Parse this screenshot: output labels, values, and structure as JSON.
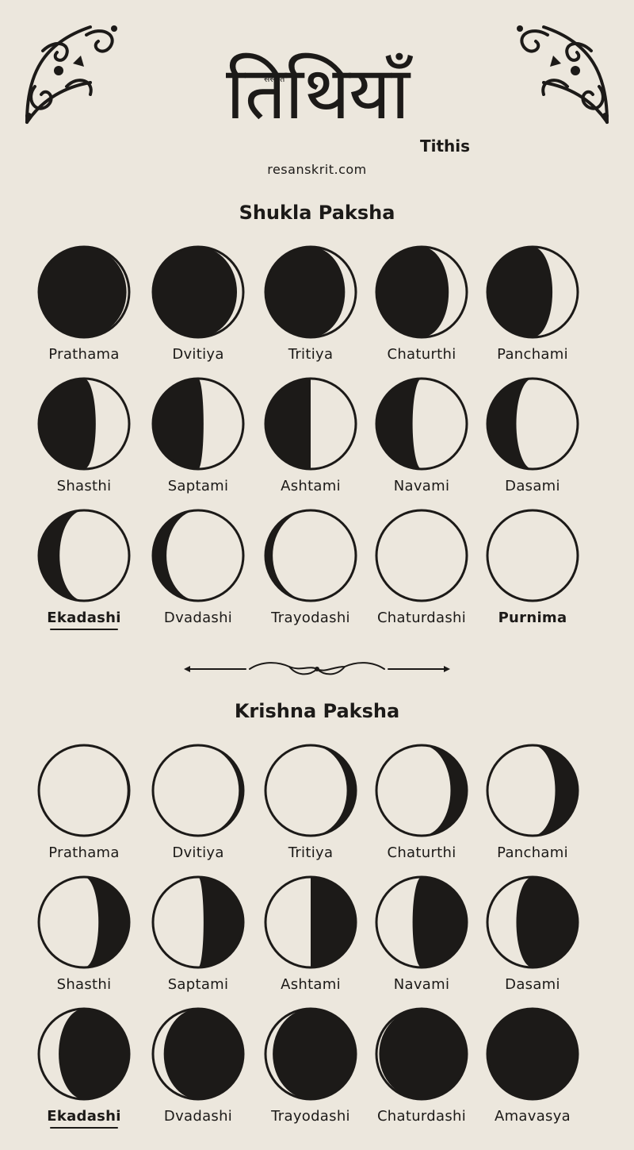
{
  "header": {
    "title_devanagari": "तिथियाँ",
    "logo_mark": "संस्कृत™",
    "subtitle": "Tithis",
    "site": "resanskrit.com"
  },
  "shukla": {
    "heading": "Shukla Paksha",
    "items": [
      {
        "label": "Prathama",
        "fill": "left",
        "lit_fraction": 0.03
      },
      {
        "label": "Dvitiya",
        "fill": "left",
        "lit_fraction": 0.07
      },
      {
        "label": "Tritiya",
        "fill": "left",
        "lit_fraction": 0.12
      },
      {
        "label": "Chaturthi",
        "fill": "left",
        "lit_fraction": 0.2
      },
      {
        "label": "Panchami",
        "fill": "left",
        "lit_fraction": 0.28
      },
      {
        "label": "Shasthi",
        "fill": "left",
        "lit_fraction": 0.37
      },
      {
        "label": "Saptami",
        "fill": "left",
        "lit_fraction": 0.44
      },
      {
        "label": "Ashtami",
        "fill": "left",
        "lit_fraction": 0.5
      },
      {
        "label": "Navami",
        "fill": "left",
        "lit_fraction": 0.6
      },
      {
        "label": "Dasami",
        "fill": "left",
        "lit_fraction": 0.68
      },
      {
        "label": "Ekadashi",
        "fill": "left",
        "lit_fraction": 0.77,
        "emphasis": true
      },
      {
        "label": "Dvadashi",
        "fill": "left",
        "lit_fraction": 0.85
      },
      {
        "label": "Trayodashi",
        "fill": "left",
        "lit_fraction": 0.92
      },
      {
        "label": "Chaturdashi",
        "fill": "left",
        "lit_fraction": 0.99
      },
      {
        "label": "Purnima",
        "fill": "left",
        "lit_fraction": 1.0,
        "bold": true
      }
    ]
  },
  "krishna": {
    "heading": "Krishna Paksha",
    "items": [
      {
        "label": "Prathama",
        "fill": "right",
        "lit_fraction": 0.98
      },
      {
        "label": "Dvitiya",
        "fill": "right",
        "lit_fraction": 0.95
      },
      {
        "label": "Tritiya",
        "fill": "right",
        "lit_fraction": 0.9
      },
      {
        "label": "Chaturthi",
        "fill": "right",
        "lit_fraction": 0.82
      },
      {
        "label": "Panchami",
        "fill": "right",
        "lit_fraction": 0.75
      },
      {
        "label": "Shasthi",
        "fill": "right",
        "lit_fraction": 0.66
      },
      {
        "label": "Saptami",
        "fill": "right",
        "lit_fraction": 0.56
      },
      {
        "label": "Ashtami",
        "fill": "right",
        "lit_fraction": 0.5
      },
      {
        "label": "Navami",
        "fill": "right",
        "lit_fraction": 0.4
      },
      {
        "label": "Dasami",
        "fill": "right",
        "lit_fraction": 0.32
      },
      {
        "label": "Ekadashi",
        "fill": "right",
        "lit_fraction": 0.22,
        "emphasis": true
      },
      {
        "label": "Dvadashi",
        "fill": "right",
        "lit_fraction": 0.12
      },
      {
        "label": "Trayodashi",
        "fill": "right",
        "lit_fraction": 0.08
      },
      {
        "label": "Chaturdashi",
        "fill": "right",
        "lit_fraction": 0.03
      },
      {
        "label": "Amavasya",
        "fill": "right",
        "lit_fraction": 0.0
      }
    ]
  },
  "colors": {
    "ink": "#1c1a18",
    "paper": "#ece7dd"
  }
}
